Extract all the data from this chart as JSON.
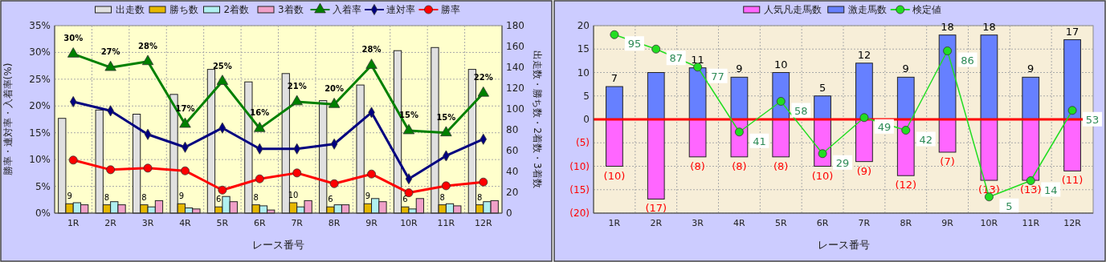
{
  "chart_data": [
    {
      "type": "bar",
      "categories": [
        "1R",
        "2R",
        "3R",
        "4R",
        "5R",
        "6R",
        "7R",
        "8R",
        "9R",
        "10R",
        "11R",
        "12R"
      ],
      "xlabel": "レース番号",
      "ylabel": "勝率・連対率・入着率(%)",
      "y2label": "出走数・勝ち数・2着数・3着数",
      "ylim": [
        0,
        35
      ],
      "yticks": [
        {
          "value": 0,
          "label": "0%"
        },
        {
          "value": 5,
          "label": "5%"
        },
        {
          "value": 10,
          "label": "10%"
        },
        {
          "value": 15,
          "label": "15%"
        },
        {
          "value": 20,
          "label": "20%"
        },
        {
          "value": 25,
          "label": "25%"
        },
        {
          "value": 30,
          "label": "30%"
        },
        {
          "value": 35,
          "label": "35%"
        }
      ],
      "y2lim": [
        0,
        180
      ],
      "y2ticks": [
        0,
        20,
        40,
        60,
        80,
        100,
        120,
        140,
        160,
        180
      ],
      "grid": true,
      "legend": "top",
      "series": [
        {
          "name": "出走数",
          "axis": "y2",
          "color": "#e0e0e0",
          "values": [
            91,
            99,
            95,
            114,
            138,
            126,
            134,
            108,
            123,
            156,
            159,
            138
          ]
        },
        {
          "name": "勝ち数",
          "axis": "y2",
          "color": "#e6b800",
          "values": [
            9,
            8,
            8,
            9,
            6,
            8,
            10,
            6,
            9,
            6,
            8,
            8
          ],
          "value_labels": [
            "9",
            "8",
            "8",
            "9",
            "6",
            "8",
            "10",
            "6",
            "9",
            "6",
            "8",
            "8"
          ]
        },
        {
          "name": "2着数",
          "axis": "y2",
          "color": "#b0f0f0",
          "values": [
            10,
            11,
            6,
            5,
            16,
            7,
            6,
            8,
            14,
            4,
            9,
            11
          ]
        },
        {
          "name": "3着数",
          "axis": "y2",
          "color": "#f0a0c8",
          "values": [
            8,
            8,
            12,
            4,
            11,
            3,
            12,
            8,
            11,
            14,
            7,
            12
          ]
        },
        {
          "name": "入着率",
          "type": "line",
          "color": "#008000",
          "marker": "triangle",
          "values": [
            29.7,
            27.2,
            28.3,
            16.6,
            24.6,
            15.8,
            20.8,
            20.3,
            27.6,
            15.4,
            15.0,
            22.4
          ],
          "value_labels": [
            "30%",
            "27%",
            "28%",
            "17%",
            "25%",
            "16%",
            "21%",
            "20%",
            "28%",
            "15%",
            "15%",
            "22%"
          ]
        },
        {
          "name": "連対率",
          "type": "line",
          "color": "#000080",
          "marker": "diamond",
          "values": [
            20.8,
            19.1,
            14.7,
            12.3,
            15.9,
            12.0,
            12.0,
            12.9,
            18.8,
            6.4,
            10.7,
            13.8
          ]
        },
        {
          "name": "勝率",
          "type": "line",
          "color": "#ff0000",
          "marker": "circle",
          "values": [
            9.9,
            8.1,
            8.4,
            7.9,
            4.3,
            6.4,
            7.5,
            5.5,
            7.3,
            3.8,
            5.1,
            5.8
          ]
        }
      ]
    },
    {
      "type": "bar",
      "stacked": true,
      "categories": [
        "1R",
        "2R",
        "3R",
        "4R",
        "5R",
        "6R",
        "7R",
        "8R",
        "9R",
        "10R",
        "11R",
        "12R"
      ],
      "xlabel": "レース番号",
      "ylim": [
        -20,
        20
      ],
      "yticks": [
        {
          "value": -20,
          "label": "(20)"
        },
        {
          "value": -15,
          "label": "(15)"
        },
        {
          "value": -10,
          "label": "(10)"
        },
        {
          "value": -5,
          "label": "(5)"
        },
        0,
        5,
        10,
        15,
        20
      ],
      "y2lim": [
        -4,
        100
      ],
      "grid": true,
      "legend": "top",
      "ref_lines": [
        {
          "axis": "y",
          "value": 0,
          "color": "#ff0000"
        }
      ],
      "series": [
        {
          "name": "人気凡走馬数",
          "color": "#ff66ff",
          "values": [
            -10,
            -17,
            -8,
            -8,
            -8,
            -10,
            -9,
            -12,
            -7,
            -13,
            -13,
            -11
          ],
          "value_labels": [
            "(10)",
            "(17)",
            "(8)",
            "(8)",
            "(8)",
            "(10)",
            "(9)",
            "(12)",
            "(7)",
            "(13)",
            "(13)",
            "(11)"
          ]
        },
        {
          "name": "激走馬数",
          "color": "#6680ff",
          "values": [
            7,
            10,
            11,
            9,
            10,
            5,
            12,
            9,
            18,
            18,
            9,
            17
          ],
          "value_labels": [
            "7",
            null,
            "11",
            "9",
            "10",
            "5",
            "12",
            "9",
            "18",
            "18",
            "9",
            "17"
          ]
        },
        {
          "name": "検定値",
          "type": "line",
          "axis": "y2",
          "color": "#22dd22",
          "marker": "circle",
          "values": [
            95,
            87,
            77,
            41,
            58,
            29,
            49,
            42,
            86,
            5,
            14,
            53
          ],
          "data_labels": true
        }
      ]
    }
  ]
}
